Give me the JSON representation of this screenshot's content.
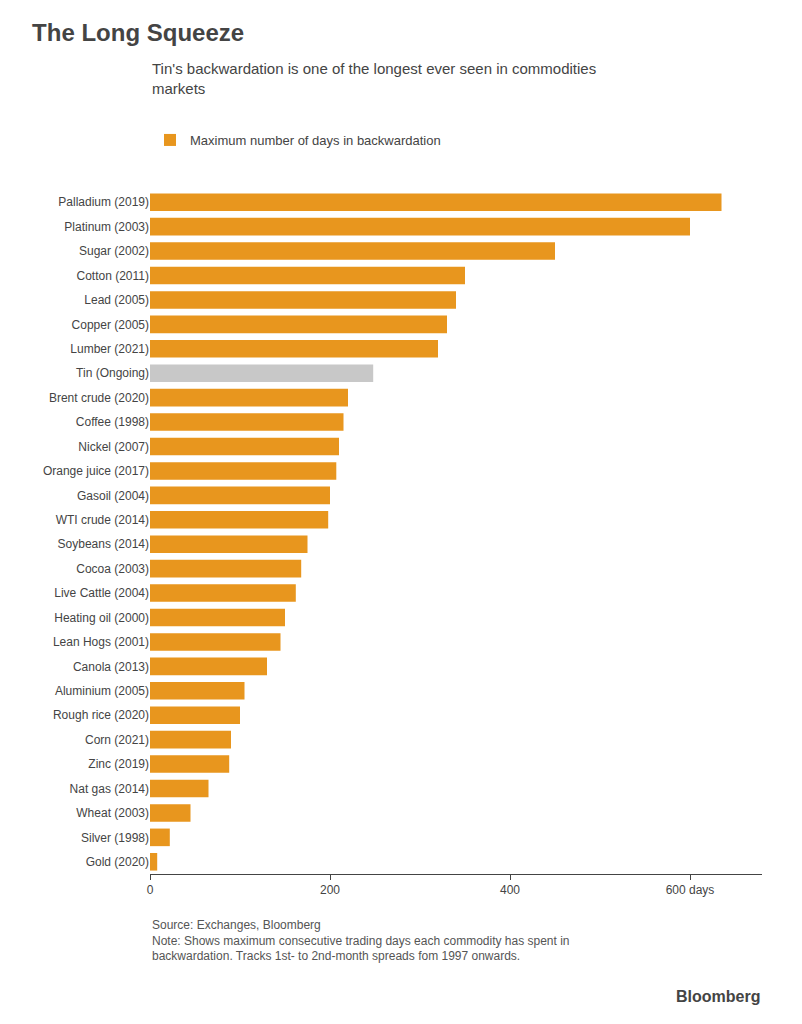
{
  "chart_data": {
    "type": "bar",
    "orientation": "horizontal",
    "title": "The Long Squeeze",
    "subtitle": "Tin's backwardation is one of the longest ever seen in commodities\nmarkets",
    "categories": [
      "Palladium (2019)",
      "Platinum (2003)",
      "Sugar (2002)",
      "Cotton (2011)",
      "Lead (2005)",
      "Copper (2005)",
      "Lumber (2021)",
      "Tin (Ongoing)",
      "Brent crude (2020)",
      "Coffee (1998)",
      "Nickel (2007)",
      "Orange juice (2017)",
      "Gasoil (2004)",
      "WTI crude (2014)",
      "Soybeans (2014)",
      "Cocoa (2003)",
      "Live Cattle (2004)",
      "Heating oil (2000)",
      "Lean Hogs (2001)",
      "Canola (2013)",
      "Aluminium (2005)",
      "Rough rice (2020)",
      "Corn (2021)",
      "Zinc (2019)",
      "Nat gas (2014)",
      "Wheat (2003)",
      "Silver (1998)",
      "Gold (2020)"
    ],
    "series": [
      {
        "name": "Maximum number of days in backwardation",
        "values": [
          635,
          600,
          450,
          350,
          340,
          330,
          320,
          248,
          220,
          215,
          210,
          207,
          200,
          198,
          175,
          168,
          162,
          150,
          145,
          130,
          105,
          100,
          90,
          88,
          65,
          45,
          22,
          8
        ],
        "colors": [
          "#E8961E",
          "#E8961E",
          "#E8961E",
          "#E8961E",
          "#E8961E",
          "#E8961E",
          "#E8961E",
          "#C8C8C8",
          "#E8961E",
          "#E8961E",
          "#E8961E",
          "#E8961E",
          "#E8961E",
          "#E8961E",
          "#E8961E",
          "#E8961E",
          "#E8961E",
          "#E8961E",
          "#E8961E",
          "#E8961E",
          "#E8961E",
          "#E8961E",
          "#E8961E",
          "#E8961E",
          "#E8961E",
          "#E8961E",
          "#E8961E",
          "#E8961E"
        ]
      }
    ],
    "xlim": [
      0,
      680
    ],
    "xticks": [
      0,
      200,
      400,
      {
        "value": 600,
        "label": "600 days"
      }
    ],
    "grid": false,
    "legend": "top left",
    "annotations": [
      "Source: Exchanges, Bloomberg\nNote: Shows maximum consecutive trading days each commodity has spent in\nbackwardation. Tracks 1st- to 2nd-month spreads fom 1997 onwards.",
      "Bloomberg"
    ]
  }
}
